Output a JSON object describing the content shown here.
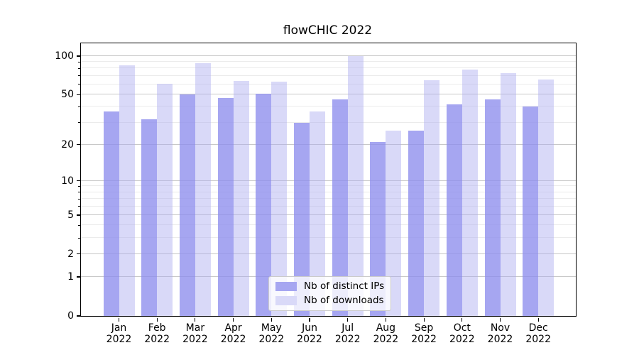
{
  "title": "flowCHIC 2022",
  "chart_data": {
    "type": "bar",
    "scale": "log1p",
    "categories": [
      "Jan 2022",
      "Feb 2022",
      "Mar 2022",
      "Apr 2022",
      "May 2022",
      "Jun 2022",
      "Jul 2022",
      "Aug 2022",
      "Sep 2022",
      "Oct 2022",
      "Nov 2022",
      "Dec 2022"
    ],
    "series": [
      {
        "name": "Nb of distinct IPs",
        "color": "#a6a6f1",
        "fill": "rgba(141,141,237,0.78)",
        "values": [
          37,
          32,
          50,
          47,
          51,
          30,
          46,
          21,
          26,
          42,
          46,
          40
        ]
      },
      {
        "name": "Nb of downloads",
        "color": "#d9d9f8",
        "fill": "rgba(171,171,239,0.45)",
        "values": [
          85,
          61,
          88,
          64,
          63,
          37,
          100,
          26,
          65,
          78,
          74,
          66
        ]
      }
    ],
    "yticks": [
      0,
      1,
      2,
      5,
      10,
      20,
      50,
      100
    ],
    "minor_yticks": [
      3,
      4,
      6,
      7,
      8,
      9,
      30,
      40,
      60,
      70,
      80,
      90
    ],
    "ylim": [
      0,
      125.7
    ],
    "xlabel": "",
    "ylabel": "",
    "grid": "on",
    "legend_position": "lower center"
  }
}
